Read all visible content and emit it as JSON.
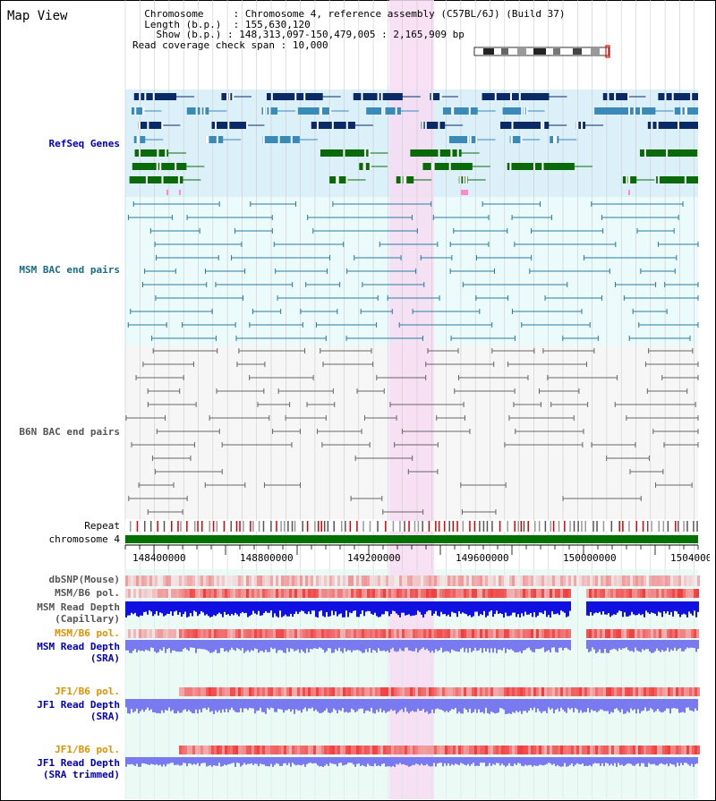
{
  "view": {
    "title": "Map View"
  },
  "info": {
    "chromosome_key": "Chromosome",
    "chromosome_val": "Chromosome 4, reference assembly (C57BL/6J) (Build 37)",
    "length_key": "Length (b.p.)",
    "length_val": "155,630,120",
    "show_key": "Show (b.p.)",
    "show_val": "148,313,097-150,479,005 : 2,165,909 bp",
    "span_key": "Read coverage check span",
    "span_val": "10,000"
  },
  "tracks": {
    "refseq": "RefSeq Genes",
    "msm_bac": "MSM BAC end pairs",
    "b6n_bac": "B6N BAC end pairs",
    "repeat": "Repeat",
    "chromosome": "chromosome 4",
    "dbsnp": "dbSNP(Mouse)",
    "msm_b6_pol_1": "MSM/B6 pol.",
    "msm_depth_cap_1": "MSM Read Depth",
    "msm_depth_cap_2": "(Capillary)",
    "msm_b6_pol_2": "MSM/B6 pol.",
    "msm_depth_sra_1": "MSM Read Depth",
    "msm_depth_sra_2": "(SRA)",
    "jf1_b6_pol_1": "JF1/B6 pol.",
    "jf1_depth_sra_1": "JF1 Read Depth",
    "jf1_depth_sra_2": "(SRA)",
    "jf1_b6_pol_2": "JF1/B6 pol.",
    "jf1_depth_trim_1": "JF1 Read Depth",
    "jf1_depth_trim_2": "(SRA trimmed)"
  },
  "ruler": {
    "ticks": [
      "148400000",
      "148800000",
      "149200000",
      "149600000",
      "150000000",
      "1504000"
    ]
  },
  "colors": {
    "refseq_bg": "#dcf0fa",
    "msm_bg": "#ebfafa",
    "b6n_bg": "#f6f6f6",
    "highlight": "#f7dcf2",
    "gene_dark": "#0a2a66",
    "gene_mid": "#3a8ab8",
    "gene_green": "#0a6a0a",
    "msm_pair": "#2a7aa0",
    "b6n_pair": "#666666",
    "depth_blue": "#1010e0",
    "depth_light": "#7a7af0",
    "label_blue": "#0000bb",
    "label_teal": "#1a6a8a",
    "label_gray": "#555555",
    "label_orange": "#e09000",
    "chromosome_bar": "#007000"
  }
}
